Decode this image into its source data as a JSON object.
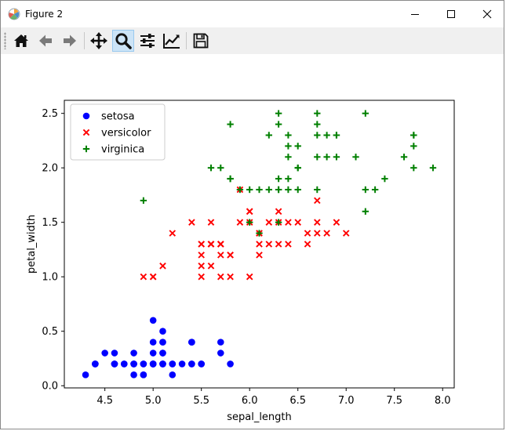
{
  "window": {
    "title": "Figure 2",
    "minimize_icon": "minimize-icon",
    "maximize_icon": "maximize-icon",
    "close_icon": "close-icon"
  },
  "toolbar": {
    "buttons": [
      {
        "name": "home-button",
        "icon": "home-icon"
      },
      {
        "name": "back-button",
        "icon": "arrow-left-icon"
      },
      {
        "name": "forward-button",
        "icon": "arrow-right-icon"
      },
      {
        "name": "pan-button",
        "icon": "move-icon"
      },
      {
        "name": "zoom-button",
        "icon": "magnifier-icon",
        "active": true
      },
      {
        "name": "subplots-button",
        "icon": "sliders-icon"
      },
      {
        "name": "edit-axes-button",
        "icon": "chart-line-icon"
      },
      {
        "name": "save-button",
        "icon": "floppy-disk-icon"
      }
    ]
  },
  "chart_data": {
    "type": "scatter",
    "title": "",
    "xlabel": "sepal_length",
    "ylabel": "petal_width",
    "xlim": [
      4.08,
      8.12
    ],
    "ylim": [
      -0.02,
      2.62
    ],
    "xticks": [
      "4.5",
      "5.0",
      "5.5",
      "6.0",
      "6.5",
      "7.0",
      "7.5",
      "8.0"
    ],
    "xtick_values": [
      4.5,
      5.0,
      5.5,
      6.0,
      6.5,
      7.0,
      7.5,
      8.0
    ],
    "yticks": [
      "0.0",
      "0.5",
      "1.0",
      "1.5",
      "2.0",
      "2.5"
    ],
    "ytick_values": [
      0.0,
      0.5,
      1.0,
      1.5,
      2.0,
      2.5
    ],
    "grid": false,
    "legend_position": "top-left",
    "series": [
      {
        "name": "setosa",
        "marker": "circle",
        "color": "#0000ff",
        "points": [
          [
            5.1,
            0.2
          ],
          [
            4.9,
            0.2
          ],
          [
            4.7,
            0.2
          ],
          [
            4.6,
            0.2
          ],
          [
            5.0,
            0.2
          ],
          [
            5.4,
            0.4
          ],
          [
            4.6,
            0.3
          ],
          [
            5.0,
            0.2
          ],
          [
            4.4,
            0.2
          ],
          [
            4.9,
            0.1
          ],
          [
            5.4,
            0.2
          ],
          [
            4.8,
            0.2
          ],
          [
            4.8,
            0.1
          ],
          [
            4.3,
            0.1
          ],
          [
            5.8,
            0.2
          ],
          [
            5.7,
            0.4
          ],
          [
            5.4,
            0.4
          ],
          [
            5.1,
            0.3
          ],
          [
            5.7,
            0.3
          ],
          [
            5.1,
            0.3
          ],
          [
            5.4,
            0.2
          ],
          [
            5.1,
            0.4
          ],
          [
            4.6,
            0.2
          ],
          [
            5.1,
            0.5
          ],
          [
            4.8,
            0.2
          ],
          [
            5.0,
            0.2
          ],
          [
            5.0,
            0.4
          ],
          [
            5.2,
            0.2
          ],
          [
            5.2,
            0.2
          ],
          [
            4.7,
            0.2
          ],
          [
            4.8,
            0.2
          ],
          [
            5.4,
            0.4
          ],
          [
            5.2,
            0.1
          ],
          [
            5.5,
            0.2
          ],
          [
            4.9,
            0.2
          ],
          [
            5.0,
            0.2
          ],
          [
            5.5,
            0.2
          ],
          [
            4.9,
            0.1
          ],
          [
            4.4,
            0.2
          ],
          [
            5.1,
            0.2
          ],
          [
            5.0,
            0.3
          ],
          [
            4.5,
            0.3
          ],
          [
            4.4,
            0.2
          ],
          [
            5.0,
            0.6
          ],
          [
            5.1,
            0.4
          ],
          [
            4.8,
            0.3
          ],
          [
            5.1,
            0.2
          ],
          [
            4.6,
            0.2
          ],
          [
            5.3,
            0.2
          ],
          [
            5.0,
            0.2
          ]
        ]
      },
      {
        "name": "versicolor",
        "marker": "x",
        "color": "#ff0000",
        "points": [
          [
            7.0,
            1.4
          ],
          [
            6.4,
            1.5
          ],
          [
            6.9,
            1.5
          ],
          [
            5.5,
            1.3
          ],
          [
            6.5,
            1.5
          ],
          [
            5.7,
            1.3
          ],
          [
            6.3,
            1.6
          ],
          [
            4.9,
            1.0
          ],
          [
            6.6,
            1.3
          ],
          [
            5.2,
            1.4
          ],
          [
            5.0,
            1.0
          ],
          [
            5.9,
            1.5
          ],
          [
            6.0,
            1.0
          ],
          [
            6.1,
            1.4
          ],
          [
            5.6,
            1.3
          ],
          [
            6.7,
            1.4
          ],
          [
            5.6,
            1.5
          ],
          [
            5.8,
            1.0
          ],
          [
            6.2,
            1.5
          ],
          [
            5.6,
            1.1
          ],
          [
            5.9,
            1.8
          ],
          [
            6.1,
            1.3
          ],
          [
            6.3,
            1.5
          ],
          [
            6.1,
            1.2
          ],
          [
            6.4,
            1.3
          ],
          [
            6.6,
            1.4
          ],
          [
            6.8,
            1.4
          ],
          [
            6.7,
            1.7
          ],
          [
            6.0,
            1.5
          ],
          [
            5.7,
            1.0
          ],
          [
            5.5,
            1.1
          ],
          [
            5.5,
            1.0
          ],
          [
            5.8,
            1.2
          ],
          [
            6.0,
            1.6
          ],
          [
            5.4,
            1.5
          ],
          [
            6.0,
            1.6
          ],
          [
            6.7,
            1.5
          ],
          [
            6.3,
            1.3
          ],
          [
            5.6,
            1.3
          ],
          [
            5.5,
            1.3
          ],
          [
            5.5,
            1.2
          ],
          [
            6.1,
            1.4
          ],
          [
            5.8,
            1.2
          ],
          [
            5.0,
            1.0
          ],
          [
            5.6,
            1.3
          ],
          [
            5.7,
            1.2
          ],
          [
            5.7,
            1.3
          ],
          [
            6.2,
            1.3
          ],
          [
            5.1,
            1.1
          ],
          [
            5.7,
            1.3
          ]
        ]
      },
      {
        "name": "virginica",
        "marker": "plus",
        "color": "#008000",
        "points": [
          [
            6.3,
            2.5
          ],
          [
            5.8,
            1.9
          ],
          [
            7.1,
            2.1
          ],
          [
            6.3,
            1.8
          ],
          [
            6.5,
            2.2
          ],
          [
            7.6,
            2.1
          ],
          [
            4.9,
            1.7
          ],
          [
            7.3,
            1.8
          ],
          [
            6.7,
            1.8
          ],
          [
            7.2,
            2.5
          ],
          [
            6.5,
            2.0
          ],
          [
            6.4,
            1.9
          ],
          [
            6.8,
            2.1
          ],
          [
            5.7,
            2.0
          ],
          [
            5.8,
            2.4
          ],
          [
            6.4,
            2.3
          ],
          [
            6.5,
            1.8
          ],
          [
            7.7,
            2.2
          ],
          [
            7.7,
            2.3
          ],
          [
            6.0,
            1.5
          ],
          [
            6.9,
            2.3
          ],
          [
            5.6,
            2.0
          ],
          [
            7.7,
            2.0
          ],
          [
            6.3,
            1.8
          ],
          [
            6.7,
            2.1
          ],
          [
            7.2,
            1.8
          ],
          [
            6.2,
            1.8
          ],
          [
            6.1,
            1.8
          ],
          [
            6.4,
            2.1
          ],
          [
            7.2,
            1.6
          ],
          [
            7.4,
            1.9
          ],
          [
            7.9,
            2.0
          ],
          [
            6.4,
            2.2
          ],
          [
            6.3,
            1.5
          ],
          [
            6.1,
            1.4
          ],
          [
            7.7,
            2.3
          ],
          [
            6.3,
            2.4
          ],
          [
            6.4,
            1.8
          ],
          [
            6.0,
            1.8
          ],
          [
            6.9,
            2.1
          ],
          [
            6.7,
            2.4
          ],
          [
            6.9,
            2.3
          ],
          [
            5.8,
            1.9
          ],
          [
            6.8,
            2.3
          ],
          [
            6.7,
            2.5
          ],
          [
            6.7,
            2.3
          ],
          [
            6.3,
            1.9
          ],
          [
            6.5,
            2.0
          ],
          [
            6.2,
            2.3
          ],
          [
            5.9,
            1.8
          ]
        ]
      }
    ]
  }
}
